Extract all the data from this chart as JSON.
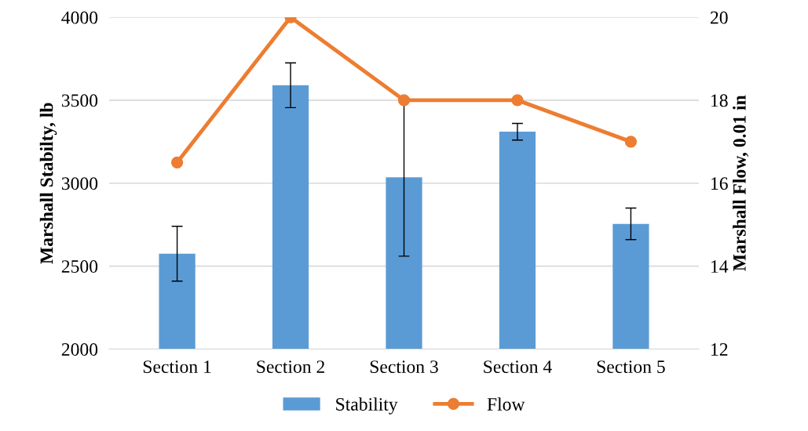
{
  "chart_data": {
    "type": "bar",
    "categories": [
      "Section 1",
      "Section 2",
      "Section 3",
      "Section 4",
      "Section 5"
    ],
    "ylabel": "Marshall Stabilty, lb",
    "y2label": "Marshall Flow, 0.01 in",
    "ylim": [
      2000,
      4000
    ],
    "yticks": [
      2000,
      2500,
      3000,
      3500,
      4000
    ],
    "y2lim": [
      12,
      20
    ],
    "y2ticks": [
      12,
      14,
      16,
      18,
      20
    ],
    "grid": "y",
    "legend": "bottom",
    "series": [
      {
        "name": "Stability",
        "color": "#5b9bd5",
        "values": [
          2575,
          3590,
          3035,
          3310,
          2755
        ],
        "errors": [
          165,
          135,
          475,
          50,
          95
        ]
      },
      {
        "name": "Flow",
        "type": "line",
        "axis": "y2",
        "color": "#ed7d31",
        "marker": "circle",
        "line_style": "solid",
        "values": [
          16.5,
          20,
          18,
          18,
          17
        ]
      }
    ]
  }
}
